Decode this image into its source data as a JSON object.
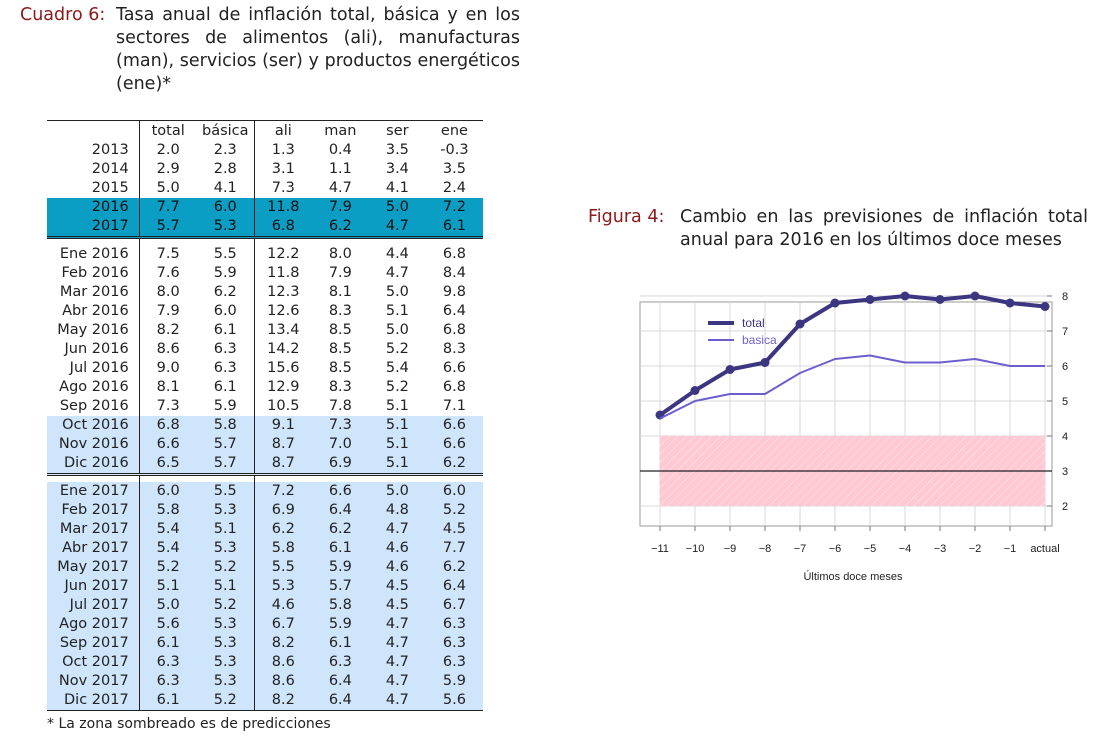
{
  "cuadro": {
    "label": "Cuadro 6:",
    "title": "Tasa anual de inflación total, básica y en los sectores de alimentos (ali), manufacturas (man), servicios (ser) y productos energéticos (ene)*"
  },
  "table": {
    "headers": [
      "total",
      "básica",
      "ali",
      "man",
      "ser",
      "ene"
    ],
    "annual": [
      [
        "2013",
        "2.0",
        "2.3",
        "1.3",
        "0.4",
        "3.5",
        "-0.3"
      ],
      [
        "2014",
        "2.9",
        "2.8",
        "3.1",
        "1.1",
        "3.4",
        "3.5"
      ],
      [
        "2015",
        "5.0",
        "4.1",
        "7.3",
        "4.7",
        "4.1",
        "2.4"
      ],
      [
        "2016",
        "7.7",
        "6.0",
        "11.8",
        "7.9",
        "5.0",
        "7.2"
      ],
      [
        "2017",
        "5.7",
        "5.3",
        "6.8",
        "6.2",
        "4.7",
        "6.1"
      ]
    ],
    "monthly2016": [
      [
        "Ene 2016",
        "7.5",
        "5.5",
        "12.2",
        "8.0",
        "4.4",
        "6.8"
      ],
      [
        "Feb 2016",
        "7.6",
        "5.9",
        "11.8",
        "7.9",
        "4.7",
        "8.4"
      ],
      [
        "Mar 2016",
        "8.0",
        "6.2",
        "12.3",
        "8.1",
        "5.0",
        "9.8"
      ],
      [
        "Abr 2016",
        "7.9",
        "6.0",
        "12.6",
        "8.3",
        "5.1",
        "6.4"
      ],
      [
        "May 2016",
        "8.2",
        "6.1",
        "13.4",
        "8.5",
        "5.0",
        "6.8"
      ],
      [
        "Jun 2016",
        "8.6",
        "6.3",
        "14.2",
        "8.5",
        "5.2",
        "8.3"
      ],
      [
        "Jul 2016",
        "9.0",
        "6.3",
        "15.6",
        "8.5",
        "5.4",
        "6.6"
      ],
      [
        "Ago 2016",
        "8.1",
        "6.1",
        "12.9",
        "8.3",
        "5.2",
        "6.8"
      ],
      [
        "Sep 2016",
        "7.3",
        "5.9",
        "10.5",
        "7.8",
        "5.1",
        "7.1"
      ],
      [
        "Oct 2016",
        "6.8",
        "5.8",
        "9.1",
        "7.3",
        "5.1",
        "6.6"
      ],
      [
        "Nov 2016",
        "6.6",
        "5.7",
        "8.7",
        "7.0",
        "5.1",
        "6.6"
      ],
      [
        "Dic 2016",
        "6.5",
        "5.7",
        "8.7",
        "6.9",
        "5.1",
        "6.2"
      ]
    ],
    "monthly2017": [
      [
        "Ene 2017",
        "6.0",
        "5.5",
        "7.2",
        "6.6",
        "5.0",
        "6.0"
      ],
      [
        "Feb 2017",
        "5.8",
        "5.3",
        "6.9",
        "6.4",
        "4.8",
        "5.2"
      ],
      [
        "Mar 2017",
        "5.4",
        "5.1",
        "6.2",
        "6.2",
        "4.7",
        "4.5"
      ],
      [
        "Abr 2017",
        "5.4",
        "5.3",
        "5.8",
        "6.1",
        "4.6",
        "7.7"
      ],
      [
        "May 2017",
        "5.2",
        "5.2",
        "5.5",
        "5.9",
        "4.6",
        "6.2"
      ],
      [
        "Jun 2017",
        "5.1",
        "5.1",
        "5.3",
        "5.7",
        "4.5",
        "6.4"
      ],
      [
        "Jul 2017",
        "5.0",
        "5.2",
        "4.6",
        "5.8",
        "4.5",
        "6.7"
      ],
      [
        "Ago 2017",
        "5.6",
        "5.3",
        "6.7",
        "5.9",
        "4.7",
        "6.3"
      ],
      [
        "Sep 2017",
        "6.1",
        "5.3",
        "8.2",
        "6.1",
        "4.7",
        "6.3"
      ],
      [
        "Oct 2017",
        "6.3",
        "5.3",
        "8.6",
        "6.3",
        "4.7",
        "6.3"
      ],
      [
        "Nov 2017",
        "6.3",
        "5.3",
        "8.6",
        "6.4",
        "4.7",
        "5.9"
      ],
      [
        "Dic 2017",
        "6.1",
        "5.2",
        "8.2",
        "6.4",
        "4.7",
        "5.6"
      ]
    ],
    "highlight_colors": {
      "annual_forecast": "#0a9ec4",
      "monthly_forecast": "#cfe5fb"
    }
  },
  "footnote": "* La zona sombreado es de predicciones",
  "figura": {
    "label": "Figura 4:",
    "title": "Cambio en las previsiones de inflación total anual para 2016 en los últimos doce meses"
  },
  "chart_data": {
    "type": "line",
    "title": "",
    "xlabel": "Últimos doce meses",
    "ylabel": "",
    "categories": [
      "−11",
      "−10",
      "−9",
      "−8",
      "−7",
      "−6",
      "−5",
      "−4",
      "−3",
      "−2",
      "−1",
      "actual"
    ],
    "series": [
      {
        "name": "total",
        "values": [
          4.6,
          5.3,
          5.9,
          6.1,
          7.2,
          7.8,
          7.9,
          8.0,
          7.9,
          8.0,
          7.8,
          7.7
        ],
        "color": "#3c3580",
        "markers": true
      },
      {
        "name": "basica",
        "values": [
          4.5,
          5.0,
          5.2,
          5.2,
          5.8,
          6.2,
          6.3,
          6.1,
          6.1,
          6.2,
          6.0,
          6.0
        ],
        "color": "#6b5fd0",
        "markers": false
      }
    ],
    "yticks": [
      "2",
      "3",
      "4",
      "5",
      "6",
      "7",
      "8"
    ],
    "ylim": [
      2,
      8
    ],
    "band": {
      "from": 2,
      "to": 4,
      "color": "#ffc8d2"
    },
    "reference_line": 3,
    "grid": true,
    "legend": "top-left"
  }
}
